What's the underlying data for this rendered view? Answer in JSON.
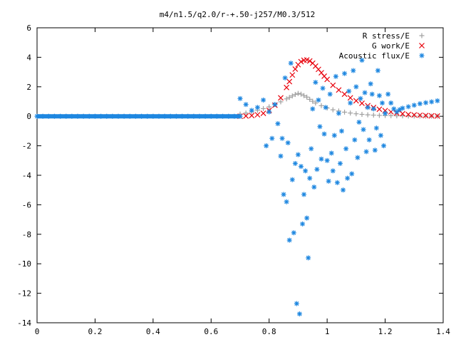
{
  "chart_data": {
    "type": "scatter",
    "title": "m4/n1.5/q2.0/r-+.50-j257/M0.3/512",
    "xlabel": "",
    "ylabel": "",
    "xlim": [
      0,
      1.4
    ],
    "ylim": [
      -14,
      6
    ],
    "x_ticks": [
      "0",
      "0.2",
      "0.4",
      "0.6",
      "0.8",
      "1",
      "1.2",
      "1.4"
    ],
    "y_ticks": [
      "6",
      "4",
      "2",
      "0",
      "-2",
      "-4",
      "-6",
      "-8",
      "-10",
      "-12",
      "-14"
    ],
    "grid": false,
    "legend_position": "top-right",
    "series": [
      {
        "name": "R stress/E",
        "marker": "plus",
        "color": "#a0a0a0",
        "x": [
          0.7,
          0.72,
          0.74,
          0.76,
          0.78,
          0.8,
          0.82,
          0.84,
          0.86,
          0.87,
          0.88,
          0.89,
          0.9,
          0.91,
          0.92,
          0.93,
          0.94,
          0.95,
          0.96,
          0.98,
          1.0,
          1.02,
          1.04,
          1.06,
          1.08,
          1.1,
          1.12,
          1.14,
          1.16,
          1.18,
          1.2,
          1.22,
          1.24,
          1.26,
          1.28,
          1.3,
          1.32,
          1.34,
          1.36,
          1.38
        ],
        "y": [
          0.15,
          0.22,
          0.3,
          0.4,
          0.52,
          0.64,
          0.8,
          0.98,
          1.18,
          1.28,
          1.38,
          1.48,
          1.55,
          1.5,
          1.4,
          1.3,
          1.15,
          1.02,
          0.9,
          0.72,
          0.56,
          0.44,
          0.36,
          0.28,
          0.22,
          0.17,
          0.13,
          0.1,
          0.08,
          0.06,
          0.05,
          0.04,
          0.03,
          0.03,
          0.02,
          0.02,
          0.02,
          0.01,
          0.01,
          0.01
        ]
      },
      {
        "name": "G work/E",
        "marker": "cross",
        "color": "#e8000b",
        "x": [
          0.7,
          0.72,
          0.74,
          0.76,
          0.78,
          0.8,
          0.82,
          0.84,
          0.86,
          0.87,
          0.88,
          0.89,
          0.9,
          0.91,
          0.92,
          0.93,
          0.94,
          0.95,
          0.96,
          0.97,
          0.98,
          0.99,
          1.0,
          1.02,
          1.04,
          1.06,
          1.08,
          1.1,
          1.12,
          1.14,
          1.16,
          1.18,
          1.2,
          1.22,
          1.24,
          1.26,
          1.28,
          1.3,
          1.32,
          1.34,
          1.36,
          1.38
        ],
        "y": [
          0.0,
          0.02,
          0.05,
          0.1,
          0.2,
          0.4,
          0.75,
          1.25,
          1.95,
          2.35,
          2.8,
          3.2,
          3.5,
          3.7,
          3.8,
          3.82,
          3.75,
          3.6,
          3.4,
          3.18,
          2.95,
          2.72,
          2.5,
          2.1,
          1.78,
          1.5,
          1.25,
          1.05,
          0.88,
          0.72,
          0.6,
          0.48,
          0.38,
          0.3,
          0.22,
          0.17,
          0.12,
          0.09,
          0.07,
          0.05,
          0.03,
          0.02
        ]
      },
      {
        "name": "Acoustic flux/E",
        "marker": "star",
        "color": "#1e87e0",
        "baseline_x": [
          0.0,
          0.02,
          0.04,
          0.06,
          0.08,
          0.1,
          0.12,
          0.14,
          0.16,
          0.18,
          0.2,
          0.22,
          0.24,
          0.26,
          0.28,
          0.3,
          0.32,
          0.34,
          0.36,
          0.38,
          0.4,
          0.42,
          0.44,
          0.46,
          0.48,
          0.5,
          0.52,
          0.54,
          0.56,
          0.58,
          0.6,
          0.62,
          0.64,
          0.66,
          0.68,
          0.7
        ],
        "baseline_y": [
          0,
          0,
          0,
          0,
          0,
          0,
          0,
          0,
          0,
          0,
          0,
          0,
          0,
          0,
          0,
          0,
          0,
          0,
          0,
          0,
          0,
          0,
          0,
          0,
          0,
          0,
          0,
          0,
          0,
          0,
          0,
          0,
          0,
          0,
          0,
          0
        ],
        "x": [
          0.7,
          0.72,
          0.74,
          0.76,
          0.78,
          0.79,
          0.8,
          0.81,
          0.82,
          0.83,
          0.84,
          0.845,
          0.85,
          0.855,
          0.86,
          0.865,
          0.87,
          0.875,
          0.88,
          0.885,
          0.89,
          0.895,
          0.9,
          0.905,
          0.91,
          0.915,
          0.92,
          0.925,
          0.93,
          0.935,
          0.94,
          0.945,
          0.95,
          0.955,
          0.96,
          0.965,
          0.97,
          0.975,
          0.98,
          0.985,
          0.99,
          0.995,
          1.0,
          1.005,
          1.01,
          1.015,
          1.02,
          1.025,
          1.03,
          1.035,
          1.04,
          1.045,
          1.05,
          1.055,
          1.06,
          1.065,
          1.07,
          1.075,
          1.08,
          1.085,
          1.09,
          1.095,
          1.1,
          1.105,
          1.11,
          1.115,
          1.12,
          1.125,
          1.13,
          1.135,
          1.14,
          1.145,
          1.15,
          1.155,
          1.16,
          1.165,
          1.17,
          1.175,
          1.18,
          1.185,
          1.19,
          1.195,
          1.2,
          1.21,
          1.22,
          1.23,
          1.24,
          1.25,
          1.26,
          1.28,
          1.3,
          1.32,
          1.34,
          1.36,
          1.38
        ],
        "y": [
          1.2,
          0.8,
          0.4,
          0.6,
          1.1,
          -2.0,
          0.3,
          -1.5,
          0.8,
          -0.5,
          -2.7,
          -1.5,
          -5.3,
          2.6,
          -5.8,
          -1.8,
          -8.4,
          3.6,
          -4.3,
          -7.9,
          -3.2,
          -12.7,
          -2.6,
          -13.4,
          -3.4,
          -7.3,
          -5.3,
          -3.7,
          -6.9,
          -9.6,
          -4.2,
          -2.2,
          0.5,
          -4.8,
          2.3,
          -3.6,
          1.1,
          -0.7,
          -2.9,
          1.9,
          -1.2,
          0.6,
          -3.0,
          -4.4,
          1.5,
          -2.5,
          -3.7,
          -1.3,
          2.7,
          -4.5,
          0.2,
          -3.2,
          -1.0,
          -5.0,
          2.9,
          -2.2,
          -4.2,
          1.7,
          0.9,
          -3.9,
          3.1,
          -1.6,
          2.0,
          -2.8,
          -0.4,
          1.2,
          3.8,
          -0.9,
          1.6,
          -2.4,
          0.6,
          -1.6,
          2.2,
          1.5,
          0.5,
          -2.3,
          -0.8,
          3.1,
          1.4,
          -1.3,
          0.9,
          -2.0,
          0.2,
          1.5,
          0.9,
          0.5,
          0.3,
          0.45,
          0.55,
          0.65,
          0.75,
          0.85,
          0.92,
          0.98,
          1.05
        ]
      }
    ]
  }
}
